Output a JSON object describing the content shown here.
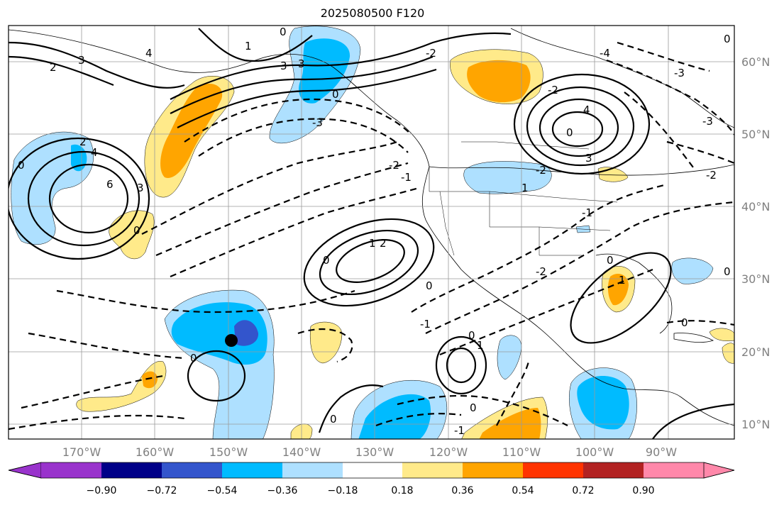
{
  "title": "2025080500 F120",
  "colors": {
    "frame": "#000000",
    "gridline": "#9a9a9a",
    "tick_text": "#808080",
    "contour": "#000000",
    "marker": "#000000"
  },
  "axes": {
    "longitude_ticks": [
      "170°W",
      "160°W",
      "150°W",
      "140°W",
      "130°W",
      "120°W",
      "110°W",
      "100°W",
      "90°W"
    ],
    "latitude_ticks": [
      "60°N",
      "50°N",
      "40°N",
      "30°N",
      "20°N",
      "10°N"
    ],
    "lon_range": [
      -180,
      -80
    ],
    "lat_range": [
      8,
      65
    ]
  },
  "map": {
    "projection": "PlateCarree",
    "features": [
      "coastlines",
      "countries",
      "states"
    ],
    "contour_labels": [
      "0",
      "1",
      "2",
      "3",
      "4",
      "-1",
      "-2",
      "-3",
      "-4",
      "1.",
      "2.",
      "3.",
      "0.",
      "4.",
      "6"
    ],
    "marker_icon": "black-dot-icon"
  },
  "colorbar": {
    "ticks": [
      "−0.90",
      "−0.72",
      "−0.54",
      "−0.36",
      "−0.18",
      "0.18",
      "0.36",
      "0.54",
      "0.72",
      "0.90"
    ],
    "colors": [
      "#9933cc",
      "#000088",
      "#3355cc",
      "#00bbff",
      "#aee0ff",
      "#ffffff",
      "#ffea8a",
      "#ffa500",
      "#ff3300",
      "#b22222",
      "#ff88aa"
    ],
    "extend": "both"
  }
}
